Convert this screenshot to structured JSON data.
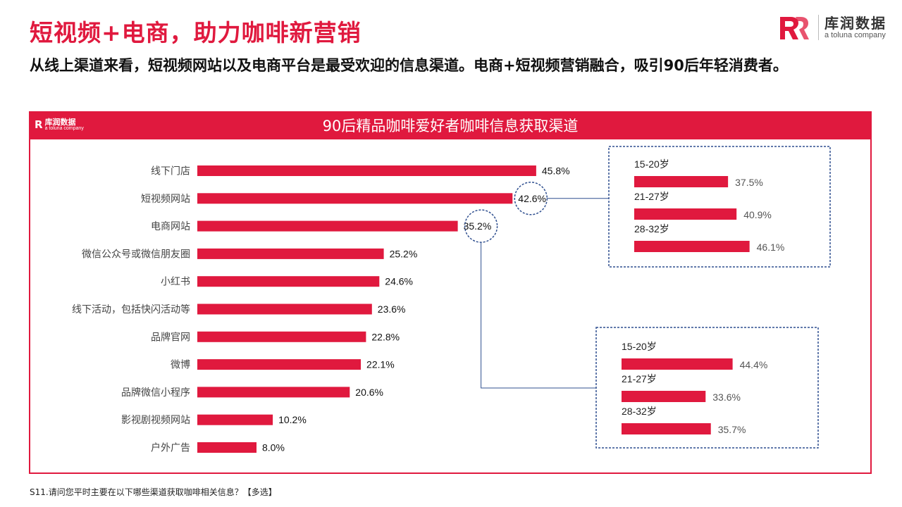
{
  "header": {
    "title": "短视频+电商，助力咖啡新营销",
    "subtitle": "从线上渠道来看，短视频网站以及电商平台是最受欢迎的信息渠道。电商+短视频营销融合，吸引90后年轻消费者。"
  },
  "brand": {
    "mark_text": "R",
    "name_zh": "库润数据",
    "name_en": "a toluna company"
  },
  "chart_data": {
    "type": "bar",
    "orientation": "horizontal",
    "title": "90后精品咖啡爱好者咖啡信息获取渠道",
    "categories": [
      "线下门店",
      "短视频网站",
      "电商网站",
      "微信公众号或微信朋友圈",
      "小红书",
      "线下活动，包括快闪活动等",
      "品牌官网",
      "微博",
      "品牌微信小程序",
      "影视剧视频网站",
      "户外广告"
    ],
    "values": [
      45.8,
      42.6,
      35.2,
      25.2,
      24.6,
      23.6,
      22.8,
      22.1,
      20.6,
      10.2,
      8.0
    ],
    "value_labels": [
      "45.8%",
      "42.6%",
      "35.2%",
      "25.2%",
      "24.6%",
      "23.6%",
      "22.8%",
      "22.1%",
      "20.6%",
      "10.2%",
      "8.0%"
    ],
    "bar_color": "#e0193e",
    "breakdowns": [
      {
        "for": "短视频网站",
        "categories": [
          "15-20岁",
          "21-27岁",
          "28-32岁"
        ],
        "values": [
          37.5,
          40.9,
          46.1
        ],
        "value_labels": [
          "37.5%",
          "40.9%",
          "46.1%"
        ]
      },
      {
        "for": "电商网站",
        "categories": [
          "15-20岁",
          "21-27岁",
          "28-32岁"
        ],
        "values": [
          44.4,
          33.6,
          35.7
        ],
        "value_labels": [
          "44.4%",
          "33.6%",
          "35.7%"
        ]
      }
    ],
    "highlight_color": "#2f4f8f"
  },
  "footnote": "S11.请问您平时主要在以下哪些渠道获取咖啡相关信息？【多选】"
}
